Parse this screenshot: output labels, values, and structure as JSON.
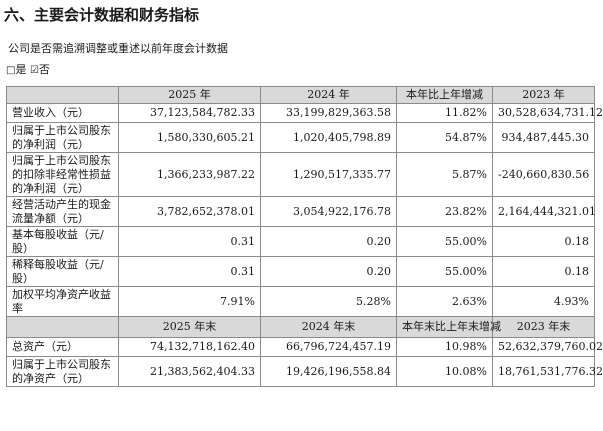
{
  "heading": "六、主要会计数据和财务指标",
  "question": "公司是否需追溯调整或重述以前年度会计数据",
  "answer": {
    "yes_box": "□",
    "yes_label": "是",
    "no_box": "☑",
    "no_label": "否"
  },
  "table1": {
    "headers": [
      "",
      "2025 年",
      "2024 年",
      "本年比上年增减",
      "2023 年"
    ],
    "rows": [
      {
        "label": "营业收入（元）",
        "values": [
          "37,123,584,782.33",
          "33,199,829,363.58",
          "11.82%",
          "30,528,634,731.12"
        ]
      },
      {
        "label": "归属于上市公司股东的净利润（元）",
        "values": [
          "1,580,330,605.21",
          "1,020,405,798.89",
          "54.87%",
          "934,487,445.30"
        ]
      },
      {
        "label": "归属于上市公司股东的扣除非经常性损益的净利润（元）",
        "values": [
          "1,366,233,987.22",
          "1,290,517,335.77",
          "5.87%",
          "-240,660,830.56"
        ]
      },
      {
        "label": "经营活动产生的现金流量净额（元）",
        "values": [
          "3,782,652,378.01",
          "3,054,922,176.78",
          "23.82%",
          "2,164,444,321.01"
        ]
      },
      {
        "label": "基本每股收益（元/股）",
        "values": [
          "0.31",
          "0.20",
          "55.00%",
          "0.18"
        ]
      },
      {
        "label": "稀释每股收益（元/股）",
        "values": [
          "0.31",
          "0.20",
          "55.00%",
          "0.18"
        ]
      },
      {
        "label": "加权平均净资产收益率",
        "values": [
          "7.91%",
          "5.28%",
          "2.63%",
          "4.93%"
        ]
      }
    ]
  },
  "table2": {
    "headers": [
      "",
      "2025 年末",
      "2024 年末",
      "本年末比上年末增减",
      "2023 年末"
    ],
    "rows": [
      {
        "label": "总资产（元）",
        "values": [
          "74,132,718,162.40",
          "66,796,724,457.19",
          "10.98%",
          "52,632,379,760.02"
        ]
      },
      {
        "label": "归属于上市公司股东的净资产（元）",
        "values": [
          "21,383,562,404.33",
          "19,426,196,558.84",
          "10.08%",
          "18,761,531,776.32"
        ]
      }
    ]
  }
}
